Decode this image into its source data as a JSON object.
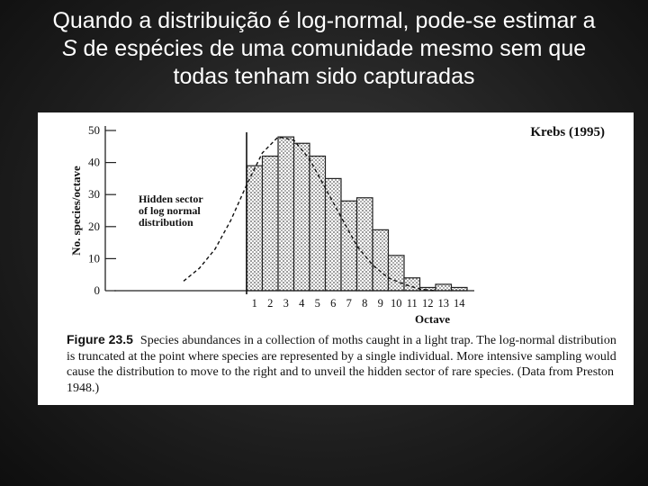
{
  "slide": {
    "title_line1": "Quando a distribuição é log-normal, pode-se estimar a",
    "title_line2_italic": "S",
    "title_line2_rest": " de espécies de uma comunidade mesmo sem que",
    "title_line3": "todas tenham sido capturadas"
  },
  "figure": {
    "citation": "Krebs (1995)",
    "caption_label": "Figure 23.5",
    "caption_text": "Species abundances in a collection of moths caught in a light trap. The log-normal distribution is truncated at the point where species are represented by a single individual. More intensive sampling would cause the distribution to move to the right and to unveil the hidden sector of rare species. (Data from Preston 1948.)",
    "hidden_sector_lines": [
      "Hidden sector",
      "of log normal",
      "distribution"
    ]
  },
  "chart_data": {
    "type": "bar",
    "ylabel": "No. species/octave",
    "xlabel": "Octave",
    "ylim": [
      0,
      50
    ],
    "yticks": [
      0,
      10,
      20,
      30,
      40,
      50
    ],
    "categories": [
      1,
      2,
      3,
      4,
      5,
      6,
      7,
      8,
      9,
      10,
      11,
      12,
      13,
      14
    ],
    "values": [
      39,
      42,
      48,
      46,
      42,
      35,
      28,
      29,
      19,
      11,
      4,
      1,
      2,
      1
    ],
    "curve": {
      "x": [
        -4,
        -3,
        -2,
        -1,
        0,
        1,
        2,
        3,
        4,
        5,
        6,
        7,
        8,
        9,
        10,
        11,
        12
      ],
      "y": [
        3,
        7,
        13,
        22,
        33,
        43,
        48,
        47,
        41,
        32,
        23,
        14,
        8,
        4,
        2,
        0.5,
        0
      ]
    },
    "grid": false
  },
  "colors": {
    "bars": "#9a9a9a",
    "panel": "#ffffff",
    "title": "#ffffff"
  }
}
